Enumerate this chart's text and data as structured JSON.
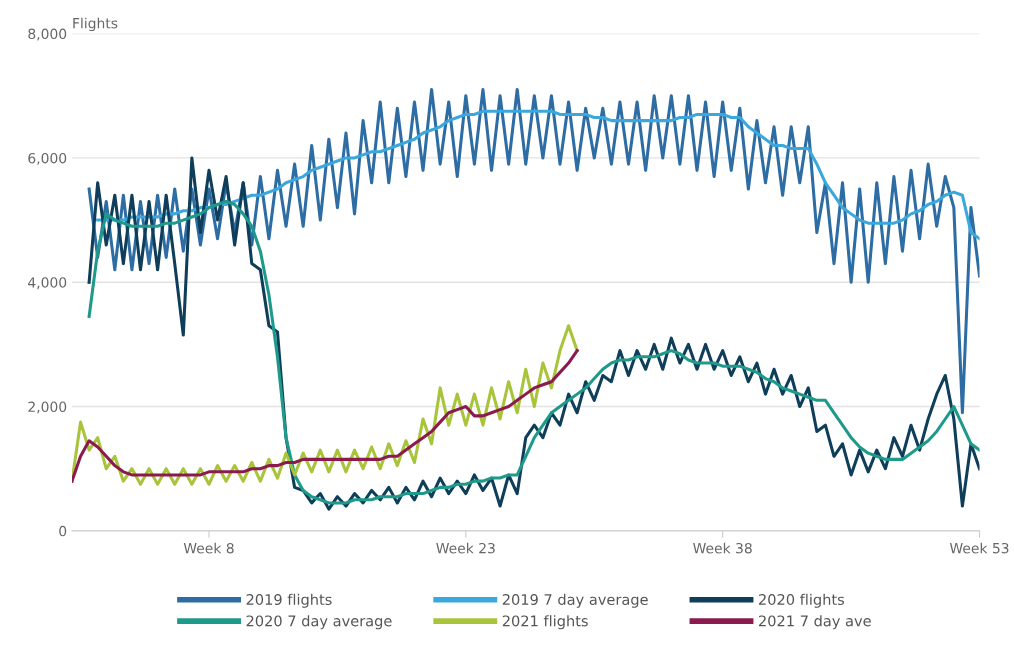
{
  "chart_data": {
    "type": "line",
    "ylabel": "Flights",
    "ylim": [
      0,
      8000
    ],
    "categories": [
      null,
      null,
      null,
      null,
      null,
      null,
      null,
      null,
      null,
      null,
      null,
      null,
      null,
      null,
      null,
      null,
      "Week 8",
      null,
      null,
      null,
      null,
      null,
      null,
      null,
      null,
      null,
      null,
      null,
      null,
      null,
      null,
      null,
      null,
      null,
      null,
      null,
      null,
      null,
      null,
      null,
      null,
      null,
      null,
      null,
      null,
      null,
      "Week 23",
      null,
      null,
      null,
      null,
      null,
      null,
      null,
      null,
      null,
      null,
      null,
      null,
      null,
      null,
      null,
      null,
      null,
      null,
      null,
      null,
      null,
      null,
      null,
      null,
      null,
      null,
      null,
      null,
      null,
      "Week 38",
      null,
      null,
      null,
      null,
      null,
      null,
      null,
      null,
      null,
      null,
      null,
      null,
      null,
      null,
      null,
      null,
      null,
      null,
      null,
      null,
      null,
      null,
      null,
      null,
      null,
      null,
      null,
      null,
      null,
      "Week 53"
    ],
    "yticks": [
      {
        "value": 0,
        "label": "0"
      },
      {
        "value": 2000,
        "label": "2,000"
      },
      {
        "value": 4000,
        "label": "4,000"
      },
      {
        "value": 6000,
        "label": "6,000"
      },
      {
        "value": 8000,
        "label": "8,000"
      }
    ],
    "grid": "y",
    "legend": "bottom",
    "marker": "none",
    "line_style": "solid",
    "series": [
      {
        "name": "2019 flights",
        "color": "#2e6da4",
        "values": [
          null,
          null,
          5500,
          4400,
          5300,
          4200,
          5400,
          4200,
          5300,
          4300,
          5400,
          4400,
          5500,
          4500,
          5500,
          4600,
          5500,
          4700,
          5600,
          4800,
          5600,
          4600,
          5700,
          4700,
          5800,
          4900,
          5900,
          4900,
          6200,
          5000,
          6300,
          5200,
          6400,
          5100,
          6600,
          5600,
          6900,
          5600,
          6800,
          5700,
          6900,
          5800,
          7100,
          5900,
          6900,
          5700,
          7000,
          5900,
          7100,
          5800,
          7000,
          5900,
          7100,
          5900,
          7000,
          6000,
          7000,
          5900,
          6900,
          5800,
          6800,
          6000,
          6800,
          5900,
          6900,
          5900,
          6900,
          5800,
          7000,
          6000,
          7000,
          5900,
          7000,
          5800,
          6900,
          5700,
          6900,
          5800,
          6800,
          5500,
          6600,
          5600,
          6500,
          5400,
          6500,
          5600,
          6500,
          4800,
          5600,
          4300,
          5600,
          4000,
          5500,
          4000,
          5600,
          4300,
          5700,
          4500,
          5800,
          4700,
          5900,
          4900,
          5700,
          5200,
          1900,
          5200,
          4100
        ]
      },
      {
        "name": "2019 7 day average",
        "color": "#3aa8dc",
        "values": [
          null,
          null,
          null,
          5000,
          5000,
          5000,
          5000,
          5050,
          5050,
          5050,
          5050,
          5100,
          5100,
          5150,
          5150,
          5200,
          5200,
          5250,
          5250,
          5300,
          5350,
          5400,
          5400,
          5450,
          5500,
          5600,
          5650,
          5700,
          5800,
          5850,
          5900,
          5950,
          6000,
          6000,
          6050,
          6100,
          6100,
          6150,
          6200,
          6250,
          6300,
          6400,
          6450,
          6500,
          6600,
          6650,
          6700,
          6700,
          6750,
          6750,
          6750,
          6750,
          6750,
          6750,
          6750,
          6750,
          6750,
          6700,
          6700,
          6700,
          6700,
          6650,
          6650,
          6600,
          6600,
          6600,
          6600,
          6600,
          6600,
          6600,
          6600,
          6650,
          6650,
          6700,
          6700,
          6700,
          6700,
          6650,
          6650,
          6500,
          6400,
          6300,
          6200,
          6200,
          6150,
          6150,
          6150,
          5900,
          5600,
          5400,
          5200,
          5100,
          5000,
          4950,
          4950,
          4950,
          4950,
          5000,
          5100,
          5150,
          5250,
          5300,
          5400,
          5450,
          5400,
          4800,
          4700
        ]
      },
      {
        "name": "2020 flights",
        "color": "#0f3e5a",
        "values": [
          null,
          null,
          4000,
          5600,
          4600,
          5400,
          4300,
          5400,
          4200,
          5300,
          4200,
          5400,
          4300,
          3150,
          6000,
          4800,
          5800,
          5000,
          5700,
          4600,
          5600,
          4300,
          4200,
          3300,
          3200,
          1500,
          700,
          650,
          450,
          600,
          350,
          550,
          400,
          600,
          450,
          650,
          500,
          700,
          450,
          700,
          500,
          800,
          550,
          850,
          600,
          800,
          600,
          900,
          650,
          850,
          400,
          900,
          600,
          1500,
          1700,
          1500,
          1900,
          1700,
          2200,
          1900,
          2400,
          2100,
          2500,
          2400,
          2900,
          2500,
          2900,
          2600,
          3000,
          2600,
          3100,
          2700,
          3000,
          2600,
          3000,
          2600,
          2900,
          2500,
          2800,
          2400,
          2700,
          2200,
          2600,
          2200,
          2500,
          2000,
          2300,
          1600,
          1700,
          1200,
          1400,
          900,
          1300,
          950,
          1300,
          1000,
          1500,
          1200,
          1700,
          1300,
          1800,
          2200,
          2500,
          1800,
          400,
          1400,
          1000
        ]
      },
      {
        "name": "2020 7 day average",
        "color": "#1f9a8a",
        "values": [
          null,
          null,
          3450,
          4500,
          5100,
          5000,
          4950,
          4900,
          4900,
          4900,
          4900,
          4950,
          4950,
          5000,
          5050,
          5100,
          5200,
          5250,
          5300,
          5250,
          5100,
          4900,
          4500,
          3800,
          2800,
          1500,
          900,
          650,
          550,
          500,
          450,
          450,
          450,
          500,
          500,
          500,
          550,
          550,
          550,
          600,
          600,
          600,
          650,
          700,
          700,
          750,
          750,
          800,
          800,
          850,
          850,
          900,
          900,
          1200,
          1500,
          1700,
          1900,
          2000,
          2100,
          2200,
          2300,
          2450,
          2600,
          2700,
          2750,
          2750,
          2800,
          2800,
          2800,
          2850,
          2900,
          2850,
          2750,
          2700,
          2700,
          2700,
          2650,
          2650,
          2650,
          2600,
          2550,
          2450,
          2400,
          2300,
          2250,
          2200,
          2150,
          2100,
          2100,
          1900,
          1700,
          1500,
          1350,
          1250,
          1200,
          1150,
          1150,
          1150,
          1250,
          1350,
          1450,
          1600,
          1800,
          2000,
          1700,
          1400,
          1300
        ]
      },
      {
        "name": "2021 flights",
        "color": "#a8c43a",
        "values": [
          800,
          1750,
          1300,
          1500,
          1000,
          1200,
          800,
          1000,
          750,
          1000,
          750,
          1000,
          750,
          1000,
          750,
          1000,
          750,
          1050,
          800,
          1050,
          800,
          1100,
          800,
          1150,
          850,
          1250,
          900,
          1250,
          950,
          1300,
          950,
          1300,
          950,
          1300,
          1000,
          1350,
          1000,
          1400,
          1050,
          1450,
          1100,
          1800,
          1400,
          2300,
          1700,
          2200,
          1700,
          2200,
          1700,
          2300,
          1800,
          2400,
          1900,
          2600,
          2000,
          2700,
          2300,
          2900,
          3300,
          2900,
          null,
          null,
          null,
          null,
          null,
          null,
          null,
          null,
          null,
          null,
          null,
          null,
          null,
          null,
          null,
          null,
          null,
          null,
          null,
          null,
          null,
          null,
          null,
          null,
          null,
          null,
          null,
          null,
          null,
          null,
          null,
          null,
          null,
          null,
          null,
          null,
          null,
          null,
          null,
          null,
          null,
          null,
          null,
          null,
          null,
          null,
          null
        ]
      },
      {
        "name": "2021 7 day ave",
        "color": "#8b1a4f",
        "values": [
          800,
          1200,
          1450,
          1350,
          1200,
          1050,
          950,
          900,
          900,
          900,
          900,
          900,
          900,
          900,
          900,
          900,
          950,
          950,
          950,
          950,
          950,
          1000,
          1000,
          1050,
          1050,
          1100,
          1100,
          1150,
          1150,
          1150,
          1150,
          1150,
          1150,
          1150,
          1150,
          1150,
          1150,
          1200,
          1200,
          1300,
          1400,
          1500,
          1600,
          1750,
          1900,
          1950,
          2000,
          1850,
          1850,
          1900,
          1950,
          2000,
          2100,
          2200,
          2300,
          2350,
          2400,
          2550,
          2700,
          2900,
          null,
          null,
          null,
          null,
          null,
          null,
          null,
          null,
          null,
          null,
          null,
          null,
          null,
          null,
          null,
          null,
          null,
          null,
          null,
          null,
          null,
          null,
          null,
          null,
          null,
          null,
          null,
          null,
          null,
          null,
          null,
          null,
          null,
          null,
          null,
          null,
          null,
          null,
          null,
          null,
          null,
          null,
          null,
          null,
          null,
          null,
          null
        ]
      }
    ]
  }
}
